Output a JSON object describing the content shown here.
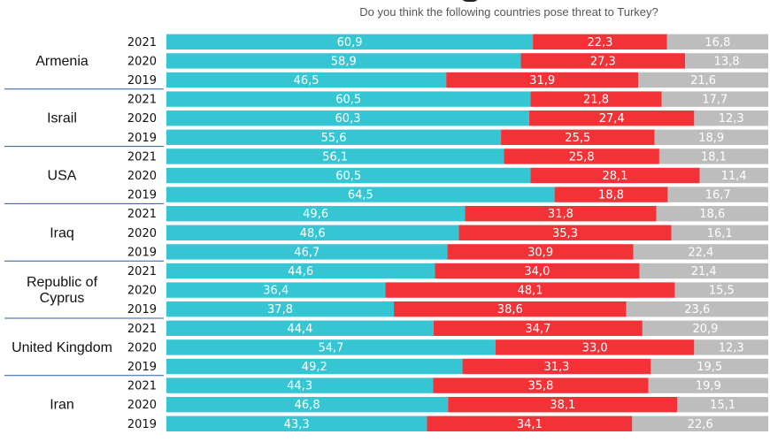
{
  "chart_data": {
    "type": "bar",
    "orientation": "horizontal",
    "stacked": true,
    "title": "",
    "subtitle": "Do you think the following countries pose threat to Turkey?",
    "colors": [
      "#36c6d3",
      "#f23237",
      "#bdbdbd"
    ],
    "xlim": [
      0,
      100
    ],
    "groups": [
      {
        "country": "Armenia",
        "rows": [
          {
            "year": "2021",
            "values": [
              60.9,
              22.3,
              16.8
            ],
            "labels": [
              "60,9",
              "22,3",
              "16,8"
            ]
          },
          {
            "year": "2020",
            "values": [
              58.9,
              27.3,
              13.8
            ],
            "labels": [
              "58,9",
              "27,3",
              "13,8"
            ]
          },
          {
            "year": "2019",
            "values": [
              46.5,
              31.9,
              21.6
            ],
            "labels": [
              "46,5",
              "31,9",
              "21,6"
            ]
          }
        ]
      },
      {
        "country": "Israil",
        "rows": [
          {
            "year": "2021",
            "values": [
              60.5,
              21.8,
              17.7
            ],
            "labels": [
              "60,5",
              "21,8",
              "17,7"
            ]
          },
          {
            "year": "2020",
            "values": [
              60.3,
              27.4,
              12.3
            ],
            "labels": [
              "60,3",
              "27,4",
              "12,3"
            ]
          },
          {
            "year": "2019",
            "values": [
              55.6,
              25.5,
              18.9
            ],
            "labels": [
              "55,6",
              "25,5",
              "18,9"
            ]
          }
        ]
      },
      {
        "country": "USA",
        "rows": [
          {
            "year": "2021",
            "values": [
              56.1,
              25.8,
              18.1
            ],
            "labels": [
              "56,1",
              "25,8",
              "18,1"
            ]
          },
          {
            "year": "2020",
            "values": [
              60.5,
              28.1,
              11.4
            ],
            "labels": [
              "60,5",
              "28,1",
              "11,4"
            ]
          },
          {
            "year": "2019",
            "values": [
              64.5,
              18.8,
              16.7
            ],
            "labels": [
              "64,5",
              "18,8",
              "16,7"
            ]
          }
        ]
      },
      {
        "country": "Iraq",
        "rows": [
          {
            "year": "2021",
            "values": [
              49.6,
              31.8,
              18.6
            ],
            "labels": [
              "49,6",
              "31,8",
              "18,6"
            ]
          },
          {
            "year": "2020",
            "values": [
              48.6,
              35.3,
              16.1
            ],
            "labels": [
              "48,6",
              "35,3",
              "16,1"
            ]
          },
          {
            "year": "2019",
            "values": [
              46.7,
              30.9,
              22.4
            ],
            "labels": [
              "46,7",
              "30,9",
              "22,4"
            ]
          }
        ]
      },
      {
        "country": "Republic of\nCyprus",
        "rows": [
          {
            "year": "2021",
            "values": [
              44.6,
              34.0,
              21.4
            ],
            "labels": [
              "44,6",
              "34,0",
              "21,4"
            ]
          },
          {
            "year": "2020",
            "values": [
              36.4,
              48.1,
              15.5
            ],
            "labels": [
              "36,4",
              "48,1",
              "15,5"
            ]
          },
          {
            "year": "2019",
            "values": [
              37.8,
              38.6,
              23.6
            ],
            "labels": [
              "37,8",
              "38,6",
              "23,6"
            ]
          }
        ]
      },
      {
        "country": "United Kingdom",
        "rows": [
          {
            "year": "2021",
            "values": [
              44.4,
              34.7,
              20.9
            ],
            "labels": [
              "44,4",
              "34,7",
              "20,9"
            ]
          },
          {
            "year": "2020",
            "values": [
              54.7,
              33.0,
              12.3
            ],
            "labels": [
              "54,7",
              "33,0",
              "12,3"
            ]
          },
          {
            "year": "2019",
            "values": [
              49.2,
              31.3,
              19.5
            ],
            "labels": [
              "49,2",
              "31,3",
              "19,5"
            ]
          }
        ]
      },
      {
        "country": "Iran",
        "rows": [
          {
            "year": "2021",
            "values": [
              44.3,
              35.8,
              19.9
            ],
            "labels": [
              "44,3",
              "35,8",
              "19,9"
            ]
          },
          {
            "year": "2020",
            "values": [
              46.8,
              38.1,
              15.1
            ],
            "labels": [
              "46,8",
              "38,1",
              "15,1"
            ]
          },
          {
            "year": "2019",
            "values": [
              43.3,
              34.1,
              22.6
            ],
            "labels": [
              "43,3",
              "34,1",
              "22,6"
            ]
          }
        ]
      }
    ]
  }
}
